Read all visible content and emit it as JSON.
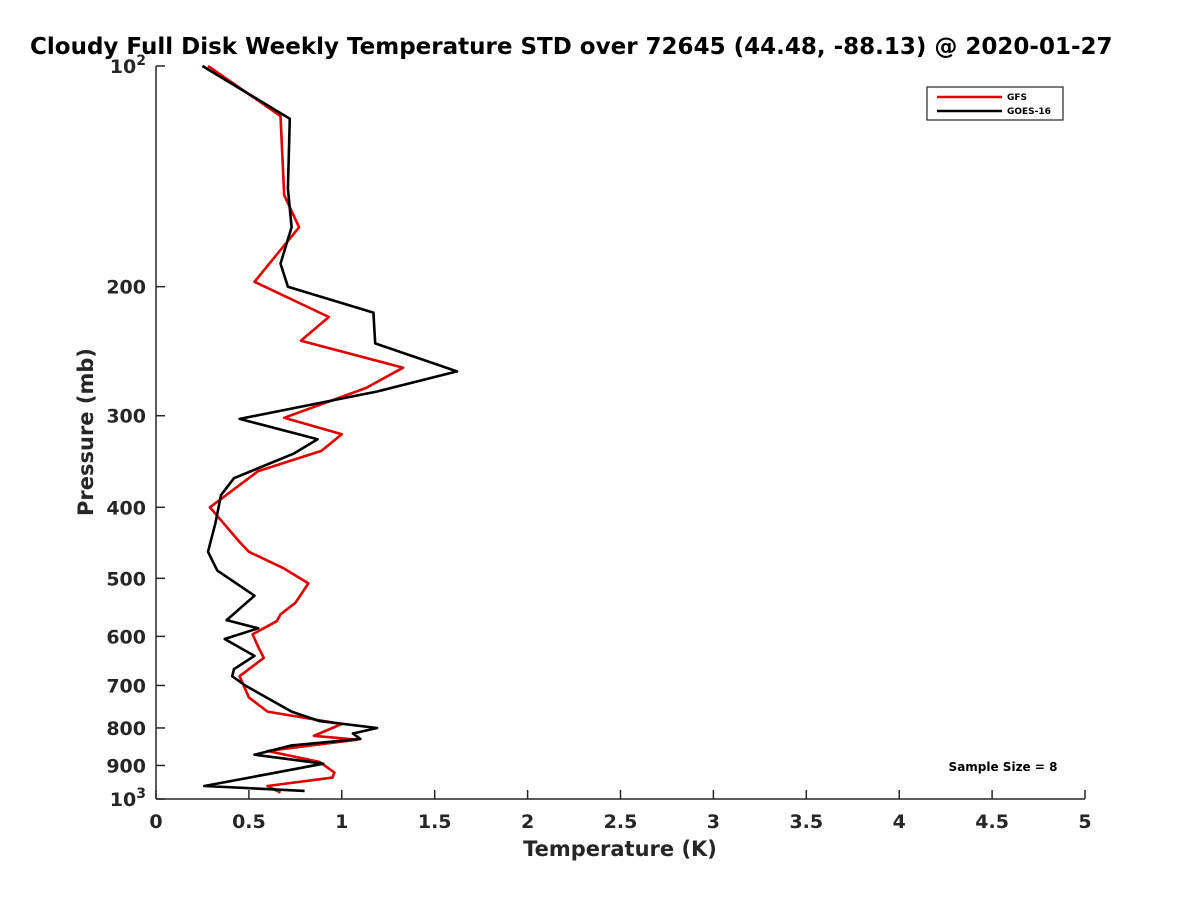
{
  "chart_data": {
    "type": "line",
    "title": "Cloudy Full Disk Weekly Temperature STD over 72645 (44.48, -88.13) @ 2020-01-27",
    "xlabel": "Temperature (K)",
    "ylabel": "Pressure (mb)",
    "xlim": [
      0,
      5
    ],
    "ylim": [
      100,
      1000
    ],
    "yscale": "log",
    "y_reversed": true,
    "x_ticks": [
      "0",
      "0.5",
      "1",
      "1.5",
      "2",
      "2.5",
      "3",
      "3.5",
      "4",
      "4.5",
      "5"
    ],
    "y_ticks": [
      {
        "value": 100,
        "base": "10",
        "exp": "2"
      },
      {
        "value": 200,
        "label": "200"
      },
      {
        "value": 300,
        "label": "300"
      },
      {
        "value": 400,
        "label": "400"
      },
      {
        "value": 500,
        "label": "500"
      },
      {
        "value": 600,
        "label": "600"
      },
      {
        "value": 700,
        "label": "700"
      },
      {
        "value": 800,
        "label": "800"
      },
      {
        "value": 900,
        "label": "900"
      },
      {
        "value": 1000,
        "base": "10",
        "exp": "3"
      }
    ],
    "grid": false,
    "legend_position": "top-right",
    "annotation": "Sample Size = 8",
    "series": [
      {
        "name": "GFS",
        "color": "#e00000",
        "points": [
          [
            0.28,
            100
          ],
          [
            0.67,
            117
          ],
          [
            0.69,
            150
          ],
          [
            0.77,
            166
          ],
          [
            0.53,
            197
          ],
          [
            0.93,
            220
          ],
          [
            0.78,
            237
          ],
          [
            1.33,
            258
          ],
          [
            1.13,
            275
          ],
          [
            0.69,
            302
          ],
          [
            1.0,
            318
          ],
          [
            0.89,
            335
          ],
          [
            0.55,
            357
          ],
          [
            0.29,
            400
          ],
          [
            0.45,
            446
          ],
          [
            0.5,
            460
          ],
          [
            0.69,
            485
          ],
          [
            0.82,
            508
          ],
          [
            0.75,
            540
          ],
          [
            0.67,
            560
          ],
          [
            0.65,
            572
          ],
          [
            0.52,
            596
          ],
          [
            0.55,
            620
          ],
          [
            0.58,
            642
          ],
          [
            0.45,
            680
          ],
          [
            0.5,
            727
          ],
          [
            0.6,
            760
          ],
          [
            1.0,
            790
          ],
          [
            0.85,
            820
          ],
          [
            1.08,
            830
          ],
          [
            0.6,
            860
          ],
          [
            0.88,
            890
          ],
          [
            0.96,
            920
          ],
          [
            0.95,
            935
          ],
          [
            0.6,
            960
          ],
          [
            0.67,
            980
          ]
        ]
      },
      {
        "name": "GOES-16",
        "color": "#000000",
        "points": [
          [
            0.25,
            100
          ],
          [
            0.72,
            118
          ],
          [
            0.71,
            147
          ],
          [
            0.73,
            166
          ],
          [
            0.67,
            186
          ],
          [
            0.71,
            200
          ],
          [
            1.17,
            217
          ],
          [
            1.18,
            239
          ],
          [
            1.62,
            261
          ],
          [
            1.19,
            278
          ],
          [
            0.45,
            303
          ],
          [
            0.87,
            323
          ],
          [
            0.74,
            338
          ],
          [
            0.42,
            365
          ],
          [
            0.35,
            385
          ],
          [
            0.32,
            420
          ],
          [
            0.28,
            460
          ],
          [
            0.33,
            488
          ],
          [
            0.53,
            528
          ],
          [
            0.38,
            570
          ],
          [
            0.55,
            585
          ],
          [
            0.37,
            605
          ],
          [
            0.53,
            638
          ],
          [
            0.42,
            665
          ],
          [
            0.41,
            680
          ],
          [
            0.48,
            700
          ],
          [
            0.73,
            760
          ],
          [
            0.88,
            783
          ],
          [
            1.19,
            800
          ],
          [
            1.06,
            814
          ],
          [
            1.1,
            828
          ],
          [
            0.73,
            845
          ],
          [
            0.53,
            870
          ],
          [
            0.9,
            895
          ],
          [
            0.6,
            925
          ],
          [
            0.26,
            960
          ],
          [
            0.8,
            975
          ]
        ]
      }
    ]
  }
}
